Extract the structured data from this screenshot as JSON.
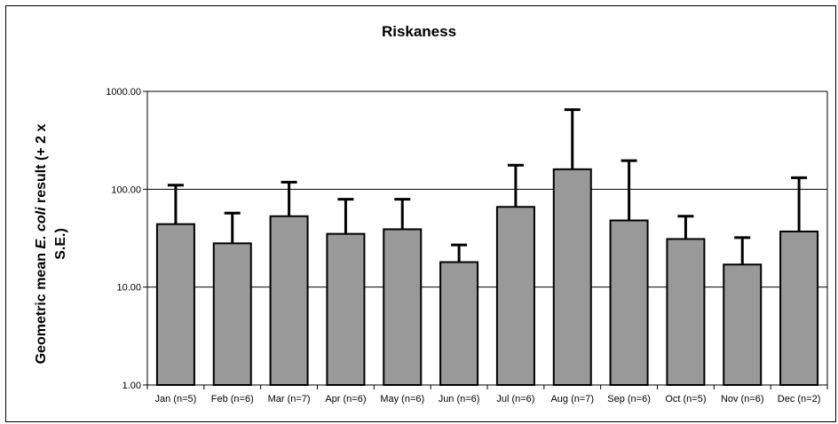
{
  "chart_data": {
    "type": "bar",
    "title": "Riskaness",
    "ylabel": {
      "line1_pre": "Geometric mean ",
      "line1_italic": "E. coli",
      "line1_post": " result (+ 2 x",
      "line2": "S.E.)"
    },
    "xlabel": "",
    "yscale": "log",
    "ylim": [
      1,
      1000
    ],
    "yticks": [
      "1.00",
      "10.00",
      "100.00",
      "1000.00"
    ],
    "categories": [
      "Jan (n=5)",
      "Feb (n=6)",
      "Mar (n=7)",
      "Apr (n=6)",
      "May (n=6)",
      "Jun (n=6)",
      "Jul (n=6)",
      "Aug (n=7)",
      "Sep (n=6)",
      "Oct (n=5)",
      "Nov (n=6)",
      "Dec (n=2)"
    ],
    "values": [
      44,
      28,
      53,
      35,
      39,
      18,
      66,
      160,
      48,
      31,
      17,
      37
    ],
    "error_upper": [
      110,
      57,
      118,
      79,
      79,
      27,
      176,
      650,
      196,
      53,
      32,
      131
    ],
    "grid": true,
    "legend": "none",
    "colors": {
      "bar": "#999999",
      "bar_border": "#000000",
      "error_bar": "#000000",
      "gridline": "#000000"
    }
  }
}
